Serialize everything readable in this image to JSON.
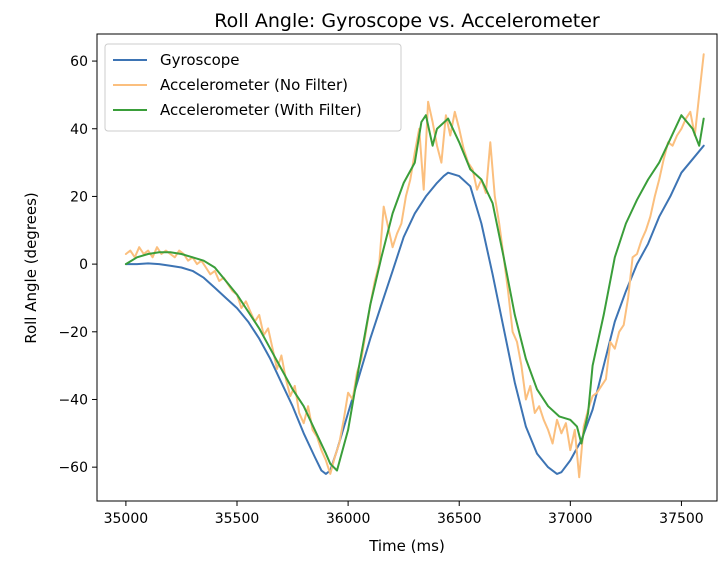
{
  "chart_data": {
    "type": "line",
    "title": "Roll Angle: Gyroscope vs. Accelerometer",
    "xlabel": "Time (ms)",
    "ylabel": "Roll Angle (degrees)",
    "xlim": [
      34870,
      37660
    ],
    "ylim": [
      -70,
      68
    ],
    "xticks": [
      35000,
      35500,
      36000,
      36500,
      37000,
      37500
    ],
    "yticks": [
      -60,
      -40,
      -20,
      0,
      20,
      40,
      60
    ],
    "grid": false,
    "legend_position": "top-left",
    "series": [
      {
        "name": "Gyroscope",
        "color": "#3d74b4",
        "x": [
          35000,
          35050,
          35100,
          35150,
          35200,
          35250,
          35300,
          35350,
          35400,
          35450,
          35500,
          35550,
          35600,
          35650,
          35700,
          35750,
          35800,
          35850,
          35880,
          35900,
          35920,
          35950,
          36000,
          36050,
          36100,
          36150,
          36200,
          36250,
          36300,
          36350,
          36400,
          36430,
          36450,
          36500,
          36550,
          36600,
          36650,
          36700,
          36750,
          36800,
          36850,
          36900,
          36940,
          36960,
          37000,
          37050,
          37100,
          37150,
          37200,
          37250,
          37300,
          37350,
          37400,
          37450,
          37500,
          37550,
          37600
        ],
        "values": [
          0,
          0,
          0.2,
          0,
          -0.5,
          -1,
          -2,
          -4,
          -7,
          -10,
          -13,
          -17,
          -22,
          -28,
          -35,
          -42,
          -50,
          -57,
          -61,
          -62,
          -61,
          -55,
          -44,
          -33,
          -22,
          -12,
          -2,
          8,
          15,
          20,
          24,
          26,
          27,
          26,
          23,
          12,
          -3,
          -19,
          -35,
          -48,
          -56,
          -60,
          -62,
          -61.5,
          -58,
          -52,
          -43,
          -30,
          -17,
          -8,
          0,
          6,
          14,
          20,
          27,
          31,
          35
        ]
      },
      {
        "name": "Accelerometer (No Filter)",
        "color": "#fbbf7e",
        "x": [
          35000,
          35020,
          35040,
          35060,
          35080,
          35100,
          35120,
          35140,
          35160,
          35180,
          35200,
          35220,
          35240,
          35260,
          35280,
          35300,
          35320,
          35340,
          35360,
          35380,
          35400,
          35420,
          35440,
          35460,
          35480,
          35500,
          35520,
          35540,
          35560,
          35580,
          35600,
          35620,
          35640,
          35660,
          35680,
          35700,
          35720,
          35740,
          35760,
          35780,
          35800,
          35820,
          35840,
          35860,
          35880,
          35900,
          35920,
          35940,
          35960,
          35980,
          36000,
          36020,
          36040,
          36060,
          36080,
          36100,
          36120,
          36140,
          36160,
          36180,
          36200,
          36220,
          36240,
          36260,
          36280,
          36300,
          36320,
          36340,
          36360,
          36380,
          36400,
          36420,
          36440,
          36460,
          36480,
          36500,
          36520,
          36540,
          36560,
          36580,
          36600,
          36620,
          36640,
          36660,
          36680,
          36700,
          36720,
          36740,
          36760,
          36780,
          36800,
          36820,
          36840,
          36860,
          36880,
          36900,
          36920,
          36940,
          36960,
          36980,
          37000,
          37020,
          37040,
          37060,
          37080,
          37100,
          37120,
          37140,
          37160,
          37180,
          37200,
          37220,
          37240,
          37260,
          37280,
          37300,
          37320,
          37340,
          37360,
          37380,
          37400,
          37420,
          37440,
          37460,
          37480,
          37500,
          37520,
          37540,
          37560,
          37580,
          37600
        ],
        "values": [
          3,
          4,
          2,
          5,
          3,
          4,
          2,
          5,
          3,
          4,
          3,
          2,
          4,
          3,
          1,
          2,
          0,
          1,
          -1,
          -3,
          -2,
          -5,
          -4,
          -6,
          -8,
          -9,
          -13,
          -11,
          -14,
          -17,
          -15,
          -21,
          -19,
          -25,
          -31,
          -27,
          -34,
          -39,
          -36,
          -44,
          -47,
          -42,
          -49,
          -51,
          -55,
          -58,
          -62,
          -57,
          -53,
          -46,
          -38,
          -40,
          -32,
          -28,
          -20,
          -12,
          -5,
          0,
          17,
          11,
          5,
          9,
          12,
          20,
          25,
          33,
          40,
          22,
          48,
          42,
          35,
          30,
          44,
          38,
          45,
          40,
          34,
          30,
          28,
          22,
          25,
          21,
          36,
          20,
          12,
          2,
          -8,
          -20,
          -23,
          -30,
          -40,
          -36,
          -44,
          -42,
          -46,
          -49,
          -53,
          -46,
          -50,
          -47,
          -55,
          -49,
          -63,
          -48,
          -43,
          -39,
          -38,
          -36,
          -34,
          -23,
          -25,
          -20,
          -18,
          -10,
          2,
          3,
          7,
          10,
          14,
          20,
          25,
          31,
          36,
          35,
          38,
          40,
          43,
          45,
          38,
          50,
          62
        ]
      },
      {
        "name": "Accelerometer (With Filter)",
        "color": "#3a9e3a",
        "x": [
          35000,
          35050,
          35100,
          35150,
          35200,
          35250,
          35300,
          35350,
          35400,
          35450,
          35500,
          35550,
          35600,
          35650,
          35700,
          35750,
          35800,
          35850,
          35900,
          35920,
          35950,
          36000,
          36050,
          36100,
          36150,
          36200,
          36250,
          36300,
          36330,
          36350,
          36380,
          36400,
          36450,
          36500,
          36550,
          36600,
          36650,
          36700,
          36750,
          36800,
          36850,
          36900,
          36950,
          37000,
          37030,
          37050,
          37080,
          37100,
          37150,
          37200,
          37250,
          37300,
          37350,
          37400,
          37450,
          37500,
          37550,
          37580,
          37600
        ],
        "values": [
          0,
          2,
          3,
          3.5,
          3.5,
          3,
          2,
          1,
          -1,
          -5,
          -9,
          -14,
          -19,
          -25,
          -31,
          -37,
          -42,
          -49,
          -56,
          -59,
          -61,
          -49,
          -30,
          -12,
          2,
          15,
          24,
          30,
          42,
          44,
          35,
          40,
          43,
          36,
          28,
          25,
          18,
          2,
          -15,
          -28,
          -37,
          -42,
          -45,
          -46,
          -48,
          -53,
          -44,
          -30,
          -15,
          2,
          12,
          19,
          25,
          30,
          37,
          44,
          40,
          35,
          43
        ]
      }
    ]
  }
}
